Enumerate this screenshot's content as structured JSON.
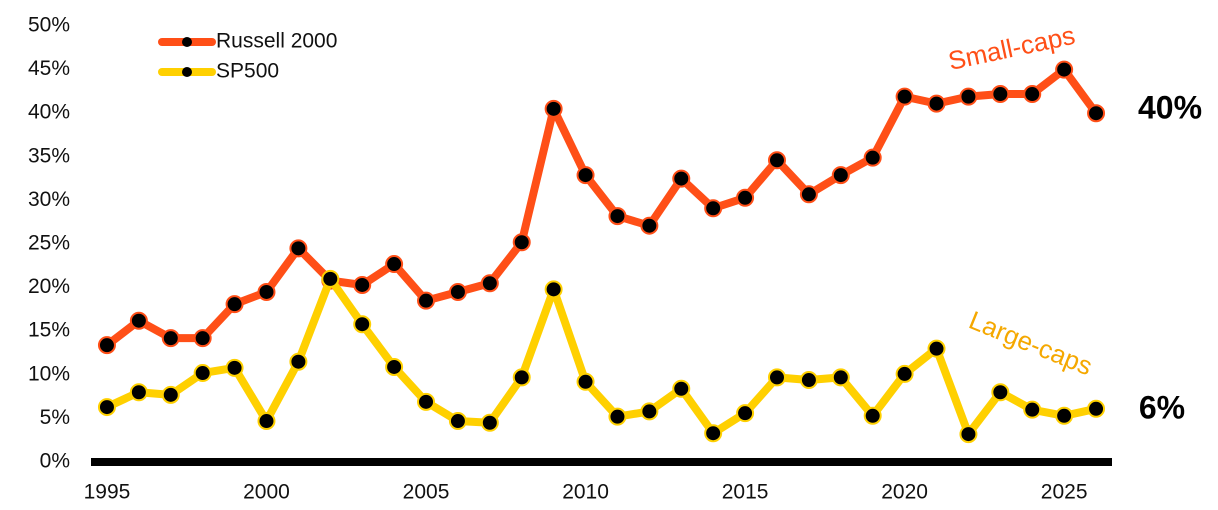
{
  "chart_data": {
    "type": "line",
    "x": [
      1995,
      1996,
      1997,
      1998,
      1999,
      2000,
      2001,
      2002,
      2003,
      2004,
      2005,
      2006,
      2007,
      2008,
      2009,
      2010,
      2011,
      2012,
      2013,
      2014,
      2015,
      2016,
      2017,
      2018,
      2019,
      2020,
      2021,
      2022,
      2023,
      2024,
      2025,
      2026
    ],
    "series": [
      {
        "name": "Russell 2000",
        "color": "#ff4f17",
        "values": [
          13.4,
          16.2,
          14.2,
          14.2,
          18.1,
          19.5,
          24.5,
          20.8,
          20.3,
          22.7,
          18.5,
          19.5,
          20.5,
          25.2,
          40.5,
          32.9,
          28.2,
          27.1,
          32.5,
          29.1,
          30.3,
          34.6,
          30.7,
          32.9,
          34.9,
          41.9,
          41.1,
          41.9,
          42.2,
          42.2,
          45.0,
          40.0
        ]
      },
      {
        "name": "SP500",
        "color": "#ffd000",
        "values": [
          6.3,
          8.0,
          7.7,
          10.2,
          10.8,
          4.7,
          11.5,
          21.0,
          15.8,
          10.9,
          6.9,
          4.7,
          4.5,
          9.7,
          19.8,
          9.2,
          5.2,
          5.8,
          8.4,
          3.3,
          5.6,
          9.7,
          9.4,
          9.7,
          5.3,
          10.1,
          13.0,
          3.2,
          8.0,
          6.0,
          5.3,
          6.1
        ]
      }
    ],
    "xlim": [
      1994.5,
      2026.5
    ],
    "xticks": [
      1995,
      2000,
      2005,
      2010,
      2015,
      2020,
      2025
    ],
    "ylim": [
      0,
      50
    ],
    "yticks": [
      {
        "value": 0,
        "label": "0%"
      },
      {
        "value": 5,
        "label": "5%"
      },
      {
        "value": 10,
        "label": "10%"
      },
      {
        "value": 15,
        "label": "15%"
      },
      {
        "value": 20,
        "label": "20%"
      },
      {
        "value": 25,
        "label": "25%"
      },
      {
        "value": 30,
        "label": "30%"
      },
      {
        "value": 35,
        "label": "35%"
      },
      {
        "value": 40,
        "label": "40%"
      },
      {
        "value": 45,
        "label": "45%"
      },
      {
        "value": 50,
        "label": "50%"
      }
    ],
    "annotations": [
      {
        "text": "Small-caps",
        "color": "#ff4f17"
      },
      {
        "text": "Large-caps",
        "color": "#f5a800"
      },
      {
        "text": "40%",
        "color": "#000000"
      },
      {
        "text": "6%",
        "color": "#000000"
      }
    ]
  }
}
